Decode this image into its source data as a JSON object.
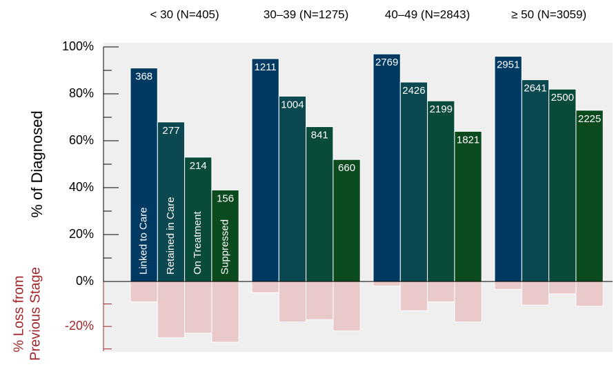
{
  "chart_data": {
    "type": "bar",
    "groups": [
      "< 30 (N=405)",
      "30–39 (N=1275)",
      "40–49 (N=2843)",
      "≥ 50 (N=3059)"
    ],
    "series": [
      {
        "name": "Linked to Care",
        "color": "#003a63",
        "values": [
          91,
          95,
          97,
          96
        ],
        "counts": [
          368,
          1211,
          2769,
          2951
        ],
        "loss": [
          -9,
          -5,
          -2,
          -3.5
        ]
      },
      {
        "name": "Retained in Care",
        "color": "#0b4850",
        "values": [
          68,
          79,
          85,
          86
        ],
        "counts": [
          277,
          1004,
          2426,
          2641
        ],
        "loss": [
          -25,
          -18,
          -13,
          -10.5
        ]
      },
      {
        "name": "On Treatment",
        "color": "#0a4a3a",
        "values": [
          53,
          66,
          77,
          82
        ],
        "counts": [
          214,
          841,
          2199,
          2500
        ],
        "loss": [
          -23,
          -17,
          -9,
          -5.5
        ]
      },
      {
        "name": "Suppressed",
        "color": "#0b4a1f",
        "values": [
          39,
          52,
          64,
          73
        ],
        "counts": [
          156,
          660,
          1821,
          2225
        ],
        "loss": [
          -27,
          -22,
          -18,
          -11
        ]
      }
    ],
    "loss_color": "#e9c9c9",
    "ylabel": "% of Diagnosed",
    "y2label": [
      "% Loss from",
      "Previous Stage"
    ],
    "ylim": [
      0,
      100
    ],
    "yticks": [
      {
        "value": 0,
        "label": "0%"
      },
      {
        "value": 20,
        "label": "20%"
      },
      {
        "value": 40,
        "label": "40%"
      },
      {
        "value": 60,
        "label": "60%"
      },
      {
        "value": 80,
        "label": "80%"
      },
      {
        "value": 100,
        "label": "100%"
      }
    ],
    "yminorticks": [
      10,
      30,
      50,
      70,
      90
    ],
    "y2lim": [
      -31,
      0
    ],
    "y2ticks": [
      {
        "value": -20,
        "label": "-20%"
      }
    ],
    "y2minorticks": [
      -10,
      -30
    ]
  }
}
